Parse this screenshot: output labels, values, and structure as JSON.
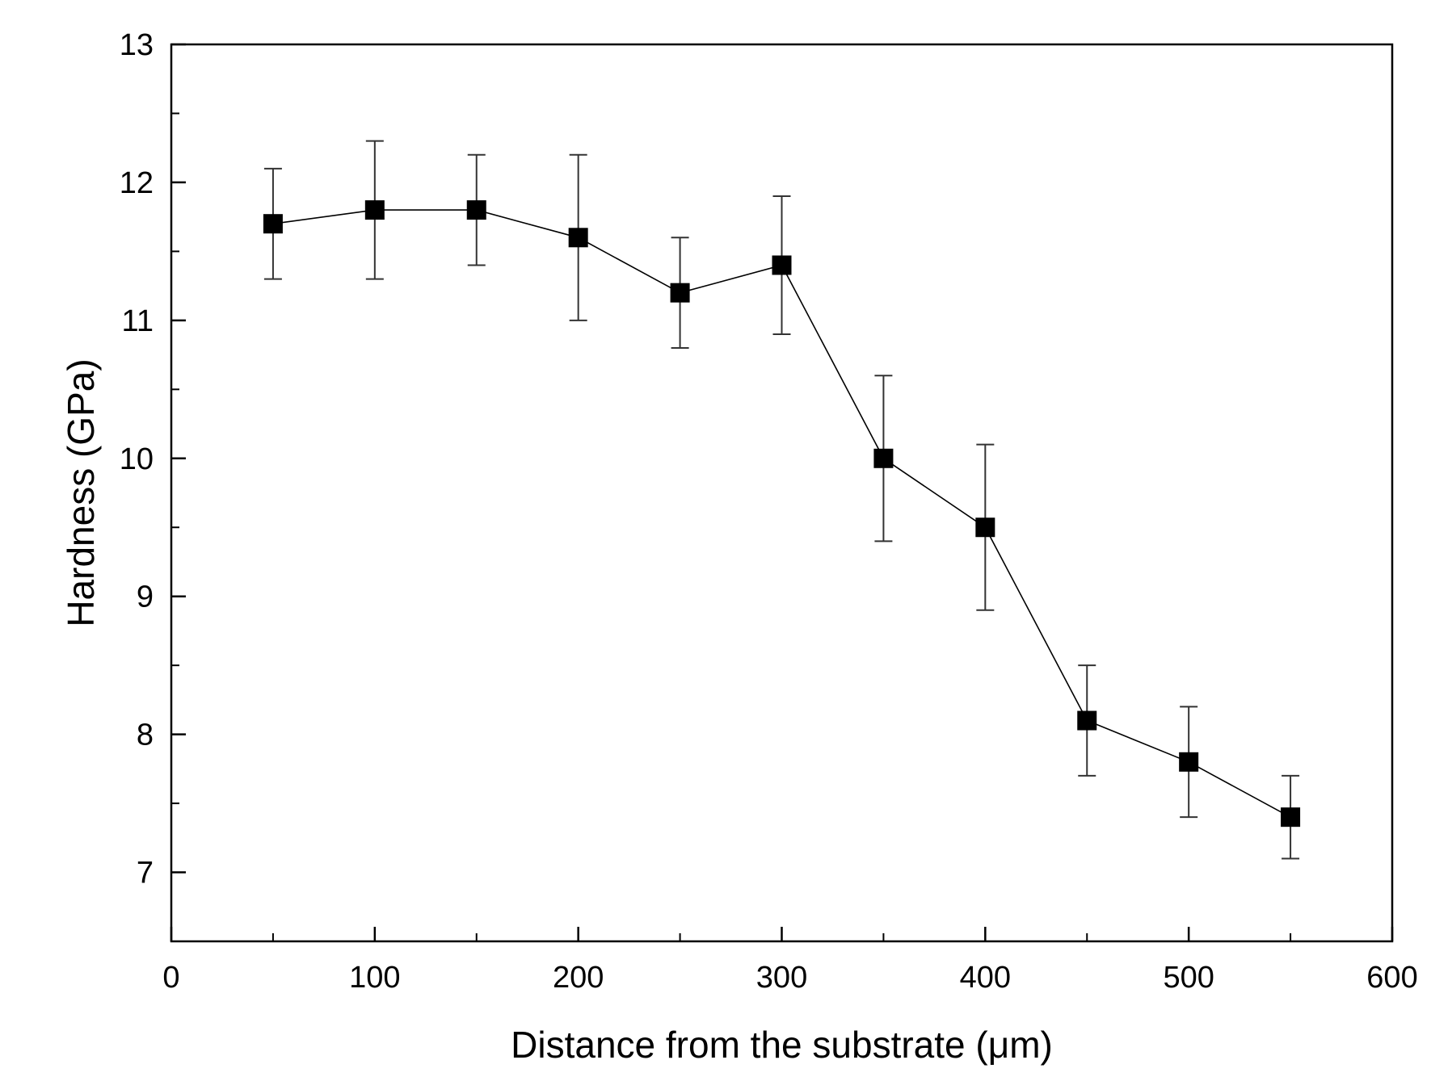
{
  "chart_data": {
    "type": "scatter",
    "title": "",
    "xlabel": "Distance from the substrate (μm)",
    "ylabel": "Hardness (GPa)",
    "xlim": [
      0,
      600
    ],
    "ylim": [
      6.5,
      13
    ],
    "x_ticks": [
      0,
      100,
      200,
      300,
      400,
      500,
      600
    ],
    "y_ticks": [
      7,
      8,
      9,
      10,
      11,
      12,
      13
    ],
    "x_minor_ticks": [
      50,
      150,
      250,
      350,
      450,
      550
    ],
    "y_minor_ticks": [
      7.5,
      8.5,
      9.5,
      10.5,
      11.5,
      12.5
    ],
    "grid": false,
    "legend": "none",
    "marker": "square",
    "connected": true,
    "series": [
      {
        "name": "Hardness",
        "color": "#000000",
        "x": [
          50,
          100,
          150,
          200,
          250,
          300,
          350,
          400,
          450,
          500,
          550
        ],
        "y": [
          11.7,
          11.8,
          11.8,
          11.6,
          11.2,
          11.4,
          10.0,
          9.5,
          8.1,
          7.8,
          7.4
        ],
        "y_err_high": [
          12.1,
          12.3,
          12.2,
          12.2,
          11.6,
          11.9,
          10.6,
          10.1,
          8.5,
          8.2,
          7.7
        ],
        "y_err_low": [
          11.3,
          11.3,
          11.4,
          11.0,
          10.8,
          10.9,
          9.4,
          8.9,
          7.7,
          7.4,
          7.1
        ]
      }
    ]
  }
}
